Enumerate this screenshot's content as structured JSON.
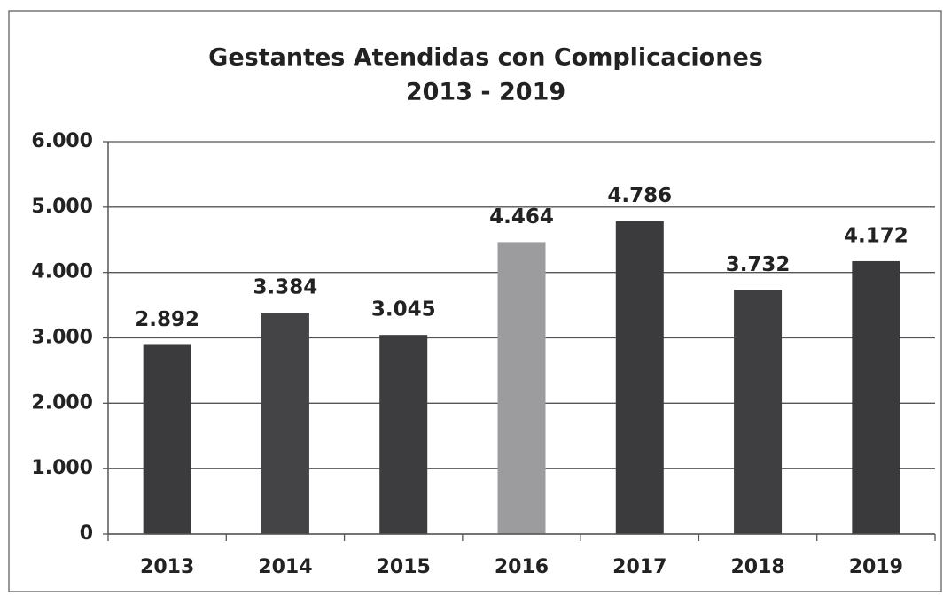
{
  "chart_data": {
    "type": "bar",
    "title": "Gestantes Atendidas con Complicaciones",
    "subtitle": "2013 - 2019",
    "categories": [
      "2013",
      "2014",
      "2015",
      "2016",
      "2017",
      "2018",
      "2019"
    ],
    "values": [
      2892,
      3384,
      3045,
      4464,
      4786,
      3732,
      4172
    ],
    "value_labels": [
      "2.892",
      "3.384",
      "3.045",
      "4.464",
      "4.786",
      "3.732",
      "4.172"
    ],
    "colors": [
      "#3b3b3d",
      "#444446",
      "#3d3d3f",
      "#9c9c9e",
      "#3b3b3d",
      "#3f3f41",
      "#3a3a3c"
    ],
    "ylim": [
      0,
      6000
    ],
    "yticks": [
      0,
      {
        "value": 1000,
        "label": "1.000"
      },
      {
        "value": 2000,
        "label": "2.000"
      },
      {
        "value": 3000,
        "label": "3.000"
      },
      {
        "value": 4000,
        "label": "4.000"
      },
      {
        "value": 5000,
        "label": "5.000"
      },
      {
        "value": 6000,
        "label": "6.000"
      }
    ],
    "grid": true
  }
}
